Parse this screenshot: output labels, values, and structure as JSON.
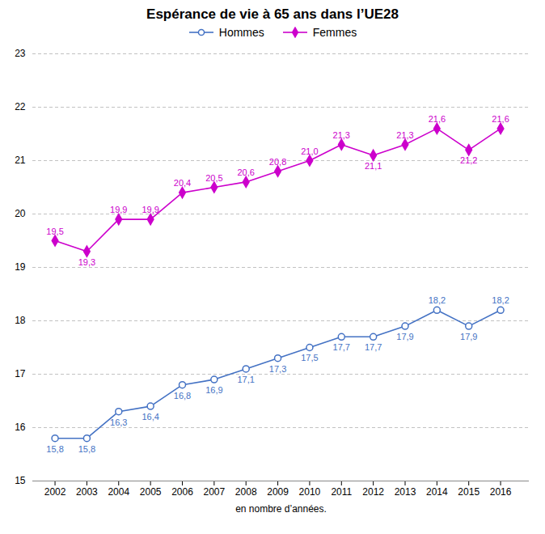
{
  "chart_data": {
    "type": "line",
    "title": "Espérance de vie à 65 ans dans l’UE28",
    "xlabel": "en nombre d’années.",
    "x": [
      2002,
      2003,
      2004,
      2005,
      2006,
      2007,
      2008,
      2009,
      2010,
      2011,
      2012,
      2013,
      2014,
      2015,
      2016
    ],
    "series": [
      {
        "name": "Hommes",
        "color": "#4472C4",
        "marker": "circle",
        "values": [
          15.8,
          15.8,
          16.3,
          16.4,
          16.8,
          16.9,
          17.1,
          17.3,
          17.5,
          17.7,
          17.7,
          17.9,
          18.2,
          17.9,
          18.2
        ],
        "value_labels": [
          "15,8",
          "15,8",
          "16,3",
          "16,4",
          "16,8",
          "16,9",
          "17,1",
          "17,3",
          "17,5",
          "17,7",
          "17,7",
          "17,9",
          "18,2",
          "17,9",
          "18,2"
        ]
      },
      {
        "name": "Femmes",
        "color": "#CC00CC",
        "marker": "diamond",
        "values": [
          19.5,
          19.3,
          19.9,
          19.9,
          20.4,
          20.5,
          20.6,
          20.8,
          21.0,
          21.3,
          21.1,
          21.3,
          21.6,
          21.2,
          21.6
        ],
        "value_labels": [
          "19,5",
          "19,3",
          "19,9",
          "19,9",
          "20,4",
          "20,5",
          "20,6",
          "20,8",
          "21,0",
          "21,3",
          "21,1",
          "21,3",
          "21,6",
          "21,2",
          "21,6"
        ]
      }
    ],
    "xlim": [
      2001.3,
      2016.9
    ],
    "xticks": [
      2002,
      2003,
      2004,
      2005,
      2006,
      2007,
      2008,
      2009,
      2010,
      2011,
      2012,
      2013,
      2014,
      2015,
      2016
    ],
    "ylim": [
      15,
      23
    ],
    "yticks": [
      15,
      16,
      17,
      18,
      19,
      20,
      21,
      22,
      23
    ],
    "grid": "y",
    "legend": "top",
    "data_labels": true
  }
}
